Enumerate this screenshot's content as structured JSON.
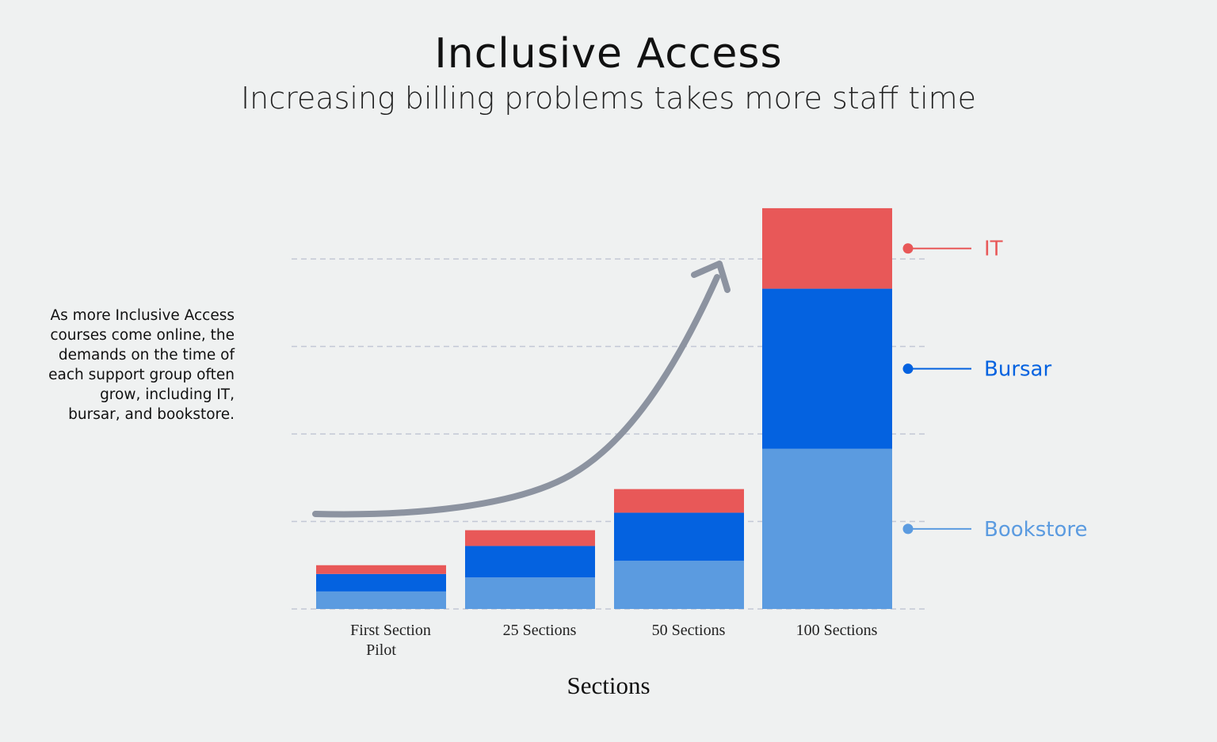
{
  "title": "Inclusive Access",
  "subtitle": "Increasing billing problems takes more staff time",
  "annotation": "As more Inclusive Access courses come online, the demands on the time of each support group often grow, including IT, bursar, and bookstore.",
  "chart_data": {
    "type": "bar",
    "stacked": true,
    "categories": [
      [
        "First Section",
        "Pilot"
      ],
      [
        "25 Sections"
      ],
      [
        "50 Sections"
      ],
      [
        "100 Sections"
      ]
    ],
    "series": [
      {
        "name": "Bookstore",
        "color": "#5b9be0",
        "values": [
          0.2,
          0.36,
          0.55,
          1.83
        ]
      },
      {
        "name": "Bursar",
        "color": "#0462e0",
        "values": [
          0.2,
          0.36,
          0.55,
          1.83
        ]
      },
      {
        "name": "IT",
        "color": "#e85858",
        "values": [
          0.1,
          0.18,
          0.27,
          0.92
        ]
      }
    ],
    "xlabel": "Sections",
    "ylabel": "",
    "ylim": [
      0,
      4.6
    ],
    "gridlines": [
      1,
      2,
      3,
      4
    ],
    "grid": true,
    "legend": "right",
    "trend_arrow": true
  }
}
